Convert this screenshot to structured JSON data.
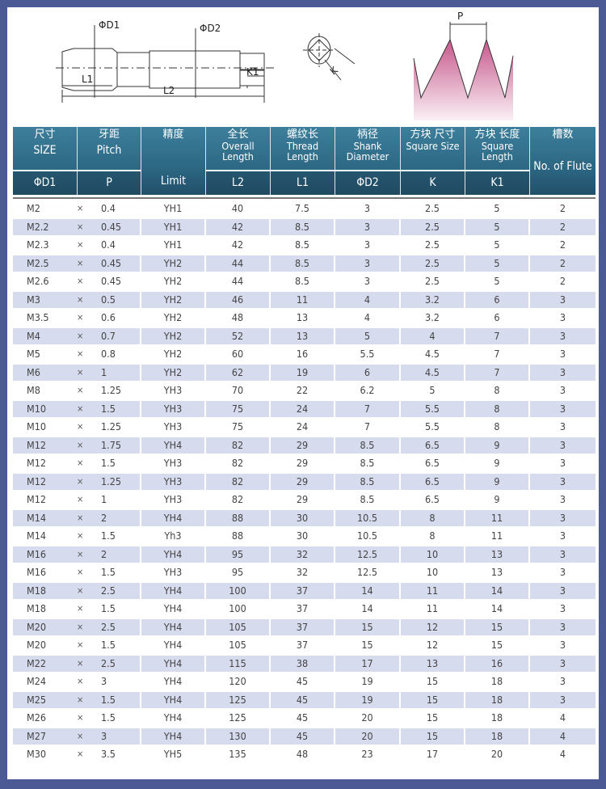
{
  "diagram": {
    "labels": {
      "d1": "ΦD1",
      "d2": "ΦD2",
      "l1": "L1",
      "l2": "L2",
      "k1": "K1",
      "k": "K",
      "p": "P"
    },
    "thread_color": "#c0457f"
  },
  "header": {
    "columns": [
      {
        "zh": "尺寸",
        "en": "SIZE",
        "sub": "ΦD1"
      },
      {
        "zh": "牙距",
        "en": "Pitch",
        "sub": "P"
      },
      {
        "zh": "精度",
        "en": "",
        "sub": "Limit"
      },
      {
        "zh": "全长",
        "en": "Overall Length",
        "sub": "L2"
      },
      {
        "zh": "螺纹长",
        "en": "Thread Length",
        "sub": "L1"
      },
      {
        "zh": "柄径",
        "en": "Shank Diameter",
        "sub": "ΦD2"
      },
      {
        "zh": "方块 尺寸",
        "en": "Square Size",
        "sub": "K"
      },
      {
        "zh": "方块 长度",
        "en": "Square Length",
        "sub": "K1"
      },
      {
        "zh": "槽数",
        "en": "No. of Flute",
        "sub": ""
      }
    ]
  },
  "rows": [
    [
      "M2",
      "×",
      "0.4",
      "YH1",
      "40",
      "7.5",
      "3",
      "2.5",
      "5",
      "2"
    ],
    [
      "M2.2",
      "×",
      "0.45",
      "YH1",
      "42",
      "8.5",
      "3",
      "2.5",
      "5",
      "2"
    ],
    [
      "M2.3",
      "×",
      "0.4",
      "YH1",
      "42",
      "8.5",
      "3",
      "2.5",
      "5",
      "2"
    ],
    [
      "M2.5",
      "×",
      "0.45",
      "YH2",
      "44",
      "8.5",
      "3",
      "2.5",
      "5",
      "2"
    ],
    [
      "M2.6",
      "×",
      "0.45",
      "YH2",
      "44",
      "8.5",
      "3",
      "2.5",
      "5",
      "2"
    ],
    [
      "M3",
      "×",
      "0.5",
      "YH2",
      "46",
      "11",
      "4",
      "3.2",
      "6",
      "3"
    ],
    [
      "M3.5",
      "×",
      "0.6",
      "YH2",
      "48",
      "13",
      "4",
      "3.2",
      "6",
      "3"
    ],
    [
      "M4",
      "×",
      "0.7",
      "YH2",
      "52",
      "13",
      "5",
      "4",
      "7",
      "3"
    ],
    [
      "M5",
      "×",
      "0.8",
      "YH2",
      "60",
      "16",
      "5.5",
      "4.5",
      "7",
      "3"
    ],
    [
      "M6",
      "×",
      "1",
      "YH2",
      "62",
      "19",
      "6",
      "4.5",
      "7",
      "3"
    ],
    [
      "M8",
      "×",
      "1.25",
      "YH3",
      "70",
      "22",
      "6.2",
      "5",
      "8",
      "3"
    ],
    [
      "M10",
      "×",
      "1.5",
      "YH3",
      "75",
      "24",
      "7",
      "5.5",
      "8",
      "3"
    ],
    [
      "M10",
      "×",
      "1.25",
      "YH3",
      "75",
      "24",
      "7",
      "5.5",
      "8",
      "3"
    ],
    [
      "M12",
      "×",
      "1.75",
      "YH4",
      "82",
      "29",
      "8.5",
      "6.5",
      "9",
      "3"
    ],
    [
      "M12",
      "×",
      "1.5",
      "YH3",
      "82",
      "29",
      "8.5",
      "6.5",
      "9",
      "3"
    ],
    [
      "M12",
      "×",
      "1.25",
      "YH3",
      "82",
      "29",
      "8.5",
      "6.5",
      "9",
      "3"
    ],
    [
      "M12",
      "×",
      "1",
      "YH3",
      "82",
      "29",
      "8.5",
      "6.5",
      "9",
      "3"
    ],
    [
      "M14",
      "×",
      "2",
      "YH4",
      "88",
      "30",
      "10.5",
      "8",
      "11",
      "3"
    ],
    [
      "M14",
      "×",
      "1.5",
      "Yh3",
      "88",
      "30",
      "10.5",
      "8",
      "11",
      "3"
    ],
    [
      "M16",
      "×",
      "2",
      "YH4",
      "95",
      "32",
      "12.5",
      "10",
      "13",
      "3"
    ],
    [
      "M16",
      "×",
      "1.5",
      "YH3",
      "95",
      "32",
      "12.5",
      "10",
      "13",
      "3"
    ],
    [
      "M18",
      "×",
      "2.5",
      "YH4",
      "100",
      "37",
      "14",
      "11",
      "14",
      "3"
    ],
    [
      "M18",
      "×",
      "1.5",
      "YH4",
      "100",
      "37",
      "14",
      "11",
      "14",
      "3"
    ],
    [
      "M20",
      "×",
      "2.5",
      "YH4",
      "105",
      "37",
      "15",
      "12",
      "15",
      "3"
    ],
    [
      "M20",
      "×",
      "1.5",
      "YH4",
      "105",
      "37",
      "15",
      "12",
      "15",
      "3"
    ],
    [
      "M22",
      "×",
      "2.5",
      "YH4",
      "115",
      "38",
      "17",
      "13",
      "16",
      "3"
    ],
    [
      "M24",
      "×",
      "3",
      "YH4",
      "120",
      "45",
      "19",
      "15",
      "18",
      "3"
    ],
    [
      "M25",
      "×",
      "1.5",
      "YH4",
      "125",
      "45",
      "19",
      "15",
      "18",
      "3"
    ],
    [
      "M26",
      "×",
      "1.5",
      "YH4",
      "125",
      "45",
      "20",
      "15",
      "18",
      "4"
    ],
    [
      "M27",
      "×",
      "3",
      "YH4",
      "130",
      "45",
      "20",
      "15",
      "18",
      "4"
    ],
    [
      "M30",
      "×",
      "3.5",
      "YH5",
      "135",
      "48",
      "23",
      "17",
      "20",
      "4"
    ]
  ]
}
